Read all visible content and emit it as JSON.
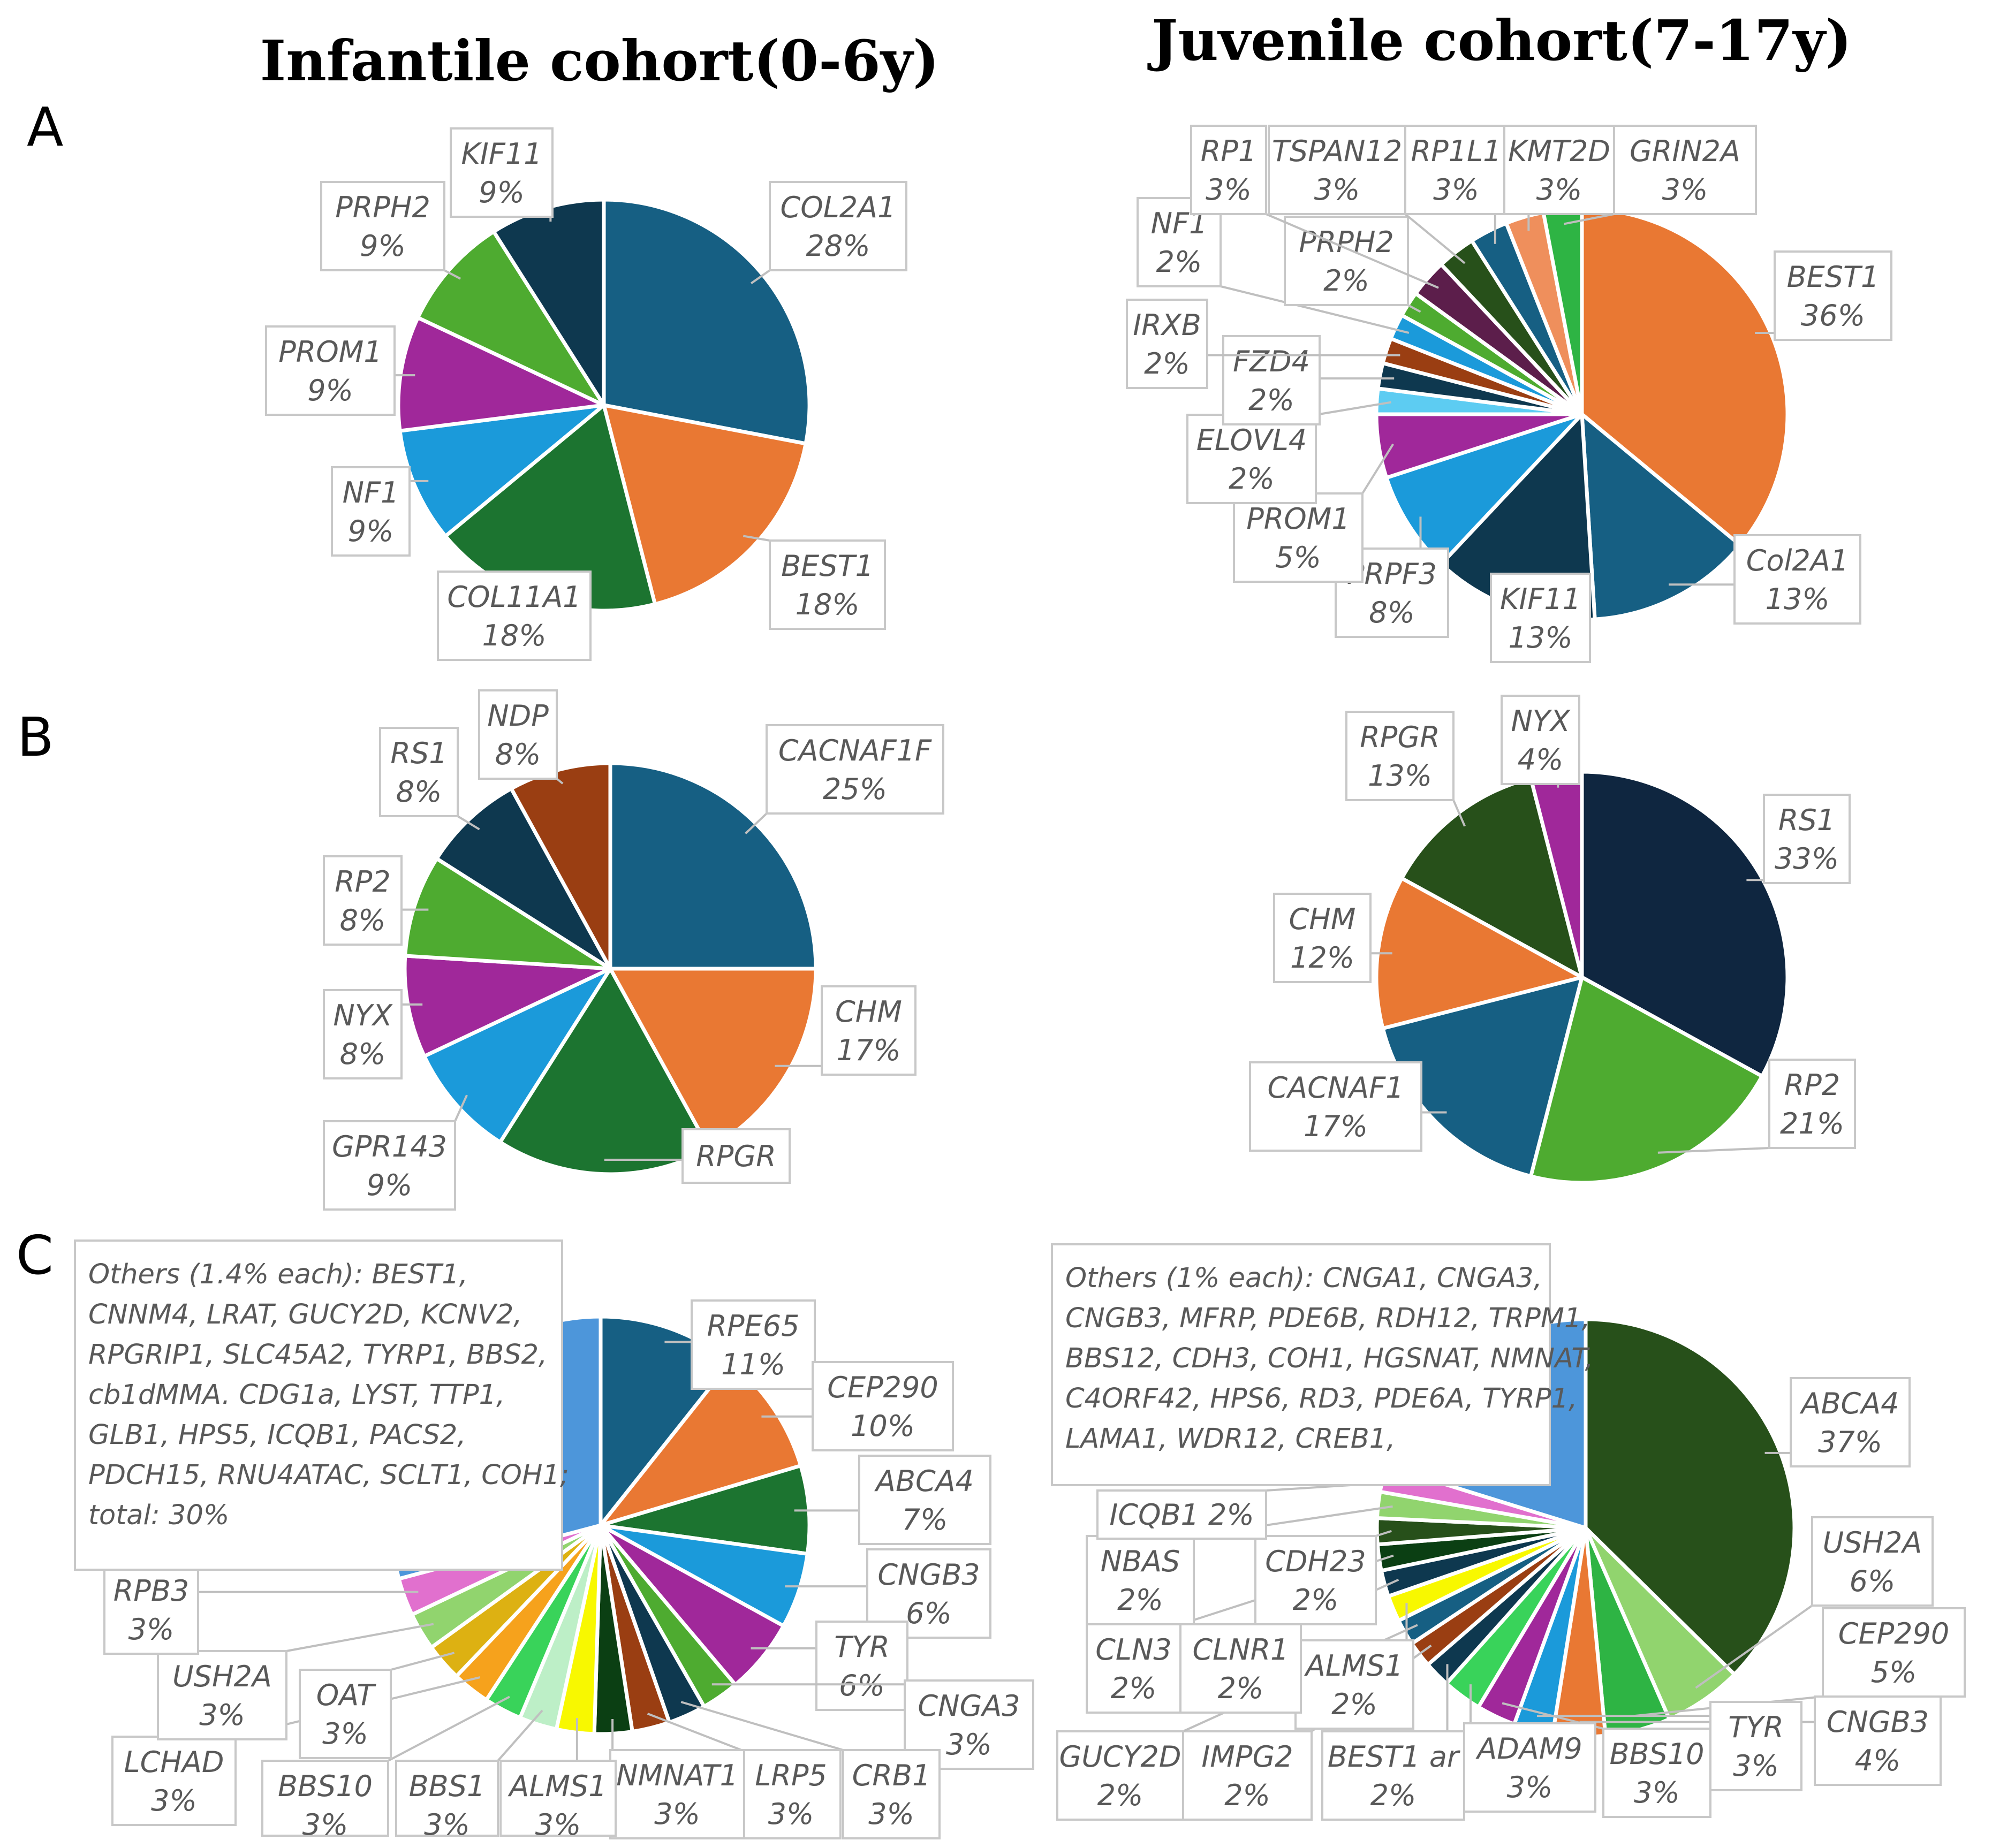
{
  "colors": {
    "dark_teal": "#165F83",
    "orange": "#E97833",
    "dark_green": "#1C7430",
    "sky_blue": "#1B9ADA",
    "purple": "#A0289A",
    "green": "#4EAB30",
    "navy": "#0E384F",
    "midnight": "#0F2640",
    "forest": "#27501A",
    "brown": "#9A3E12",
    "maroon": "#5C1E4B",
    "salmon": "#EF8F5C",
    "bright_green": "#2EB444",
    "light_cyan": "#5DCCF2",
    "light_blue": "#4D96DA",
    "pink": "#E170CE",
    "light_green": "#91D46E",
    "mustard": "#DDB112",
    "amber": "#F6A21C",
    "lime": "#39D35A",
    "mint": "#BDEFC7",
    "yellow": "#F8F800",
    "black_green": "#0B3F13"
  },
  "titles": {
    "infantile": "Infantile cohort(0-6y)",
    "juvenile": "Juvenile cohort(7-17y)"
  },
  "panel_letters": [
    "A",
    "B",
    "C"
  ],
  "chart_data": [
    {
      "id": "A-infantile",
      "type": "pie",
      "panel": "A",
      "cohort": "Infantile cohort(0-6y)",
      "slices": [
        {
          "label": "COL2A1",
          "percent": "28%",
          "value": 28,
          "color": "dark_teal"
        },
        {
          "label": "BEST1",
          "percent": "18%",
          "value": 18,
          "color": "orange"
        },
        {
          "label": "COL11A1",
          "percent": "18%",
          "value": 18,
          "color": "dark_green"
        },
        {
          "label": "NF1",
          "percent": "9%",
          "value": 9,
          "color": "sky_blue"
        },
        {
          "label": "PROM1",
          "percent": "9%",
          "value": 9,
          "color": "purple"
        },
        {
          "label": "PRPH2",
          "percent": "9%",
          "value": 9,
          "color": "green"
        },
        {
          "label": "KIF11",
          "percent": "9%",
          "value": 9,
          "color": "navy"
        }
      ]
    },
    {
      "id": "A-juvenile",
      "type": "pie",
      "panel": "A",
      "cohort": "Juvenile cohort(7-17y)",
      "slices": [
        {
          "label": "BEST1",
          "percent": "36%",
          "value": 36,
          "color": "orange"
        },
        {
          "label": "Col2A1",
          "percent": "13%",
          "value": 13,
          "color": "dark_teal"
        },
        {
          "label": "KIF11",
          "percent": "13%",
          "value": 13,
          "color": "navy"
        },
        {
          "label": "PRPF3",
          "percent": "8%",
          "value": 8,
          "color": "sky_blue"
        },
        {
          "label": "PROM1",
          "percent": "5%",
          "value": 5,
          "color": "purple"
        },
        {
          "label": "ELOVL4",
          "percent": "2%",
          "value": 2,
          "color": "light_cyan"
        },
        {
          "label": "FZD4",
          "percent": "2%",
          "value": 2,
          "color": "navy"
        },
        {
          "label": "IRXB",
          "percent": "2%",
          "value": 2,
          "color": "brown"
        },
        {
          "label": "NF1",
          "percent": "2%",
          "value": 2,
          "color": "sky_blue"
        },
        {
          "label": "PRPH2",
          "percent": "2%",
          "value": 2,
          "color": "green"
        },
        {
          "label": "RP1",
          "percent": "3%",
          "value": 3,
          "color": "maroon"
        },
        {
          "label": "TSPAN12",
          "percent": "3%",
          "value": 3,
          "color": "forest"
        },
        {
          "label": "RP1L1",
          "percent": "3%",
          "value": 3,
          "color": "dark_teal"
        },
        {
          "label": "KMT2D",
          "percent": "3%",
          "value": 3,
          "color": "salmon"
        },
        {
          "label": "GRIN2A",
          "percent": "3%",
          "value": 3,
          "color": "bright_green"
        }
      ]
    },
    {
      "id": "B-infantile",
      "type": "pie",
      "panel": "B",
      "cohort": "Infantile cohort(0-6y)",
      "slices": [
        {
          "label": "CACNAF1F",
          "percent": "25%",
          "value": 25,
          "color": "dark_teal"
        },
        {
          "label": "CHM",
          "percent": "17%",
          "value": 17,
          "color": "orange"
        },
        {
          "label": "RPGR",
          "percent": "",
          "value": 17,
          "color": "dark_green"
        },
        {
          "label": "GPR143",
          "percent": "9%",
          "value": 9,
          "color": "sky_blue"
        },
        {
          "label": "NYX",
          "percent": "8%",
          "value": 8,
          "color": "purple"
        },
        {
          "label": "RP2",
          "percent": "8%",
          "value": 8,
          "color": "green"
        },
        {
          "label": "RS1",
          "percent": "8%",
          "value": 8,
          "color": "navy"
        },
        {
          "label": "NDP",
          "percent": "8%",
          "value": 8,
          "color": "brown"
        }
      ]
    },
    {
      "id": "B-juvenile",
      "type": "pie",
      "panel": "B",
      "cohort": "Juvenile cohort(7-17y)",
      "slices": [
        {
          "label": "RS1",
          "percent": "33%",
          "value": 33,
          "color": "midnight"
        },
        {
          "label": "RP2",
          "percent": "21%",
          "value": 21,
          "color": "green"
        },
        {
          "label": "CACNAF1",
          "percent": "17%",
          "value": 17,
          "color": "dark_teal"
        },
        {
          "label": "CHM",
          "percent": "12%",
          "value": 12,
          "color": "orange"
        },
        {
          "label": "RPGR",
          "percent": "13%",
          "value": 13,
          "color": "forest"
        },
        {
          "label": "NYX",
          "percent": "4%",
          "value": 4,
          "color": "purple"
        }
      ]
    },
    {
      "id": "C-infantile",
      "type": "pie",
      "panel": "C",
      "cohort": "Infantile cohort(0-6y)",
      "others_note": "Others (1.4% each): BEST1, CNNM4, LRAT, GUCY2D, KCNV2, RPGRIP1, SLC45A2, TYRP1, BBS2, cb1dMMA. CDG1a, LYST, TTP1, GLB1, HPS5, ICQB1, PACS2, PDCH15, RNU4ATAC, SCLT1, COH1; total: 30%",
      "slices": [
        {
          "label": "RPE65",
          "percent": "11%",
          "value": 11,
          "color": "dark_teal"
        },
        {
          "label": "CEP290",
          "percent": "10%",
          "value": 10,
          "color": "orange"
        },
        {
          "label": "ABCA4",
          "percent": "7%",
          "value": 7,
          "color": "dark_green"
        },
        {
          "label": "CNGB3",
          "percent": "6%",
          "value": 6,
          "color": "sky_blue"
        },
        {
          "label": "TYR",
          "percent": "6%",
          "value": 6,
          "color": "purple"
        },
        {
          "label": "CNGA3",
          "percent": "3%",
          "value": 3,
          "color": "green"
        },
        {
          "label": "CRB1",
          "percent": "3%",
          "value": 3,
          "color": "navy"
        },
        {
          "label": "LRP5",
          "percent": "3%",
          "value": 3,
          "color": "brown"
        },
        {
          "label": "NMNAT1",
          "percent": "3%",
          "value": 3,
          "color": "black_green"
        },
        {
          "label": "ALMS1",
          "percent": "3%",
          "value": 3,
          "color": "yellow"
        },
        {
          "label": "BBS1",
          "percent": "3%",
          "value": 3,
          "color": "mint"
        },
        {
          "label": "BBS10",
          "percent": "3%",
          "value": 3,
          "color": "lime"
        },
        {
          "label": "LCHAD",
          "percent": "3%",
          "value": 3,
          "color": "amber"
        },
        {
          "label": "OAT",
          "percent": "3%",
          "value": 3,
          "color": "mustard"
        },
        {
          "label": "USH2A",
          "percent": "3%",
          "value": 3,
          "color": "light_green"
        },
        {
          "label": "RPB3",
          "percent": "3%",
          "value": 3,
          "color": "pink"
        },
        {
          "label": "Others",
          "percent": "30%",
          "value": 30,
          "color": "light_blue"
        }
      ]
    },
    {
      "id": "C-juvenile",
      "type": "pie",
      "panel": "C",
      "cohort": "Juvenile cohort(7-17y)",
      "others_note": "Others (1% each): CNGA1, CNGA3, CNGB3, MFRP, PDE6B, RDH12, TRPM1, BBS12, CDH3, COH1, HGSNAT, NMNAT, C4ORF42, HPS6, RD3, PDE6A, TYRP1, LAMA1, WDR12, CREB1,",
      "slices": [
        {
          "label": "ABCA4",
          "percent": "37%",
          "value": 37,
          "color": "forest"
        },
        {
          "label": "USH2A",
          "percent": "6%",
          "value": 6,
          "color": "light_green"
        },
        {
          "label": "CEP290",
          "percent": "5%",
          "value": 5,
          "color": "bright_green"
        },
        {
          "label": "CNGB3",
          "percent": "4%",
          "value": 4,
          "color": "orange"
        },
        {
          "label": "TYR",
          "percent": "3%",
          "value": 3,
          "color": "sky_blue"
        },
        {
          "label": "BBS10",
          "percent": "3%",
          "value": 3,
          "color": "purple"
        },
        {
          "label": "ADAM9",
          "percent": "3%",
          "value": 3,
          "color": "lime"
        },
        {
          "label": "BEST1 ar",
          "percent": "2%",
          "value": 2,
          "color": "navy"
        },
        {
          "label": "IMPG2",
          "percent": "2%",
          "value": 2,
          "color": "brown"
        },
        {
          "label": "GUCY2D",
          "percent": "2%",
          "value": 2,
          "color": "dark_teal"
        },
        {
          "label": "ALMS1",
          "percent": "2%",
          "value": 2,
          "color": "yellow"
        },
        {
          "label": "CLNR1",
          "percent": "2%",
          "value": 2,
          "color": "navy"
        },
        {
          "label": "CLN3",
          "percent": "2%",
          "value": 2,
          "color": "black_green"
        },
        {
          "label": "CDH23",
          "percent": "2%",
          "value": 2,
          "color": "forest"
        },
        {
          "label": "NBAS",
          "percent": "2%",
          "value": 2,
          "color": "light_green"
        },
        {
          "label": "ICQB1",
          "percent": "2%",
          "value": 2,
          "color": "pink"
        },
        {
          "label": "Others",
          "percent": "",
          "value": 20,
          "color": "light_blue"
        }
      ]
    }
  ]
}
